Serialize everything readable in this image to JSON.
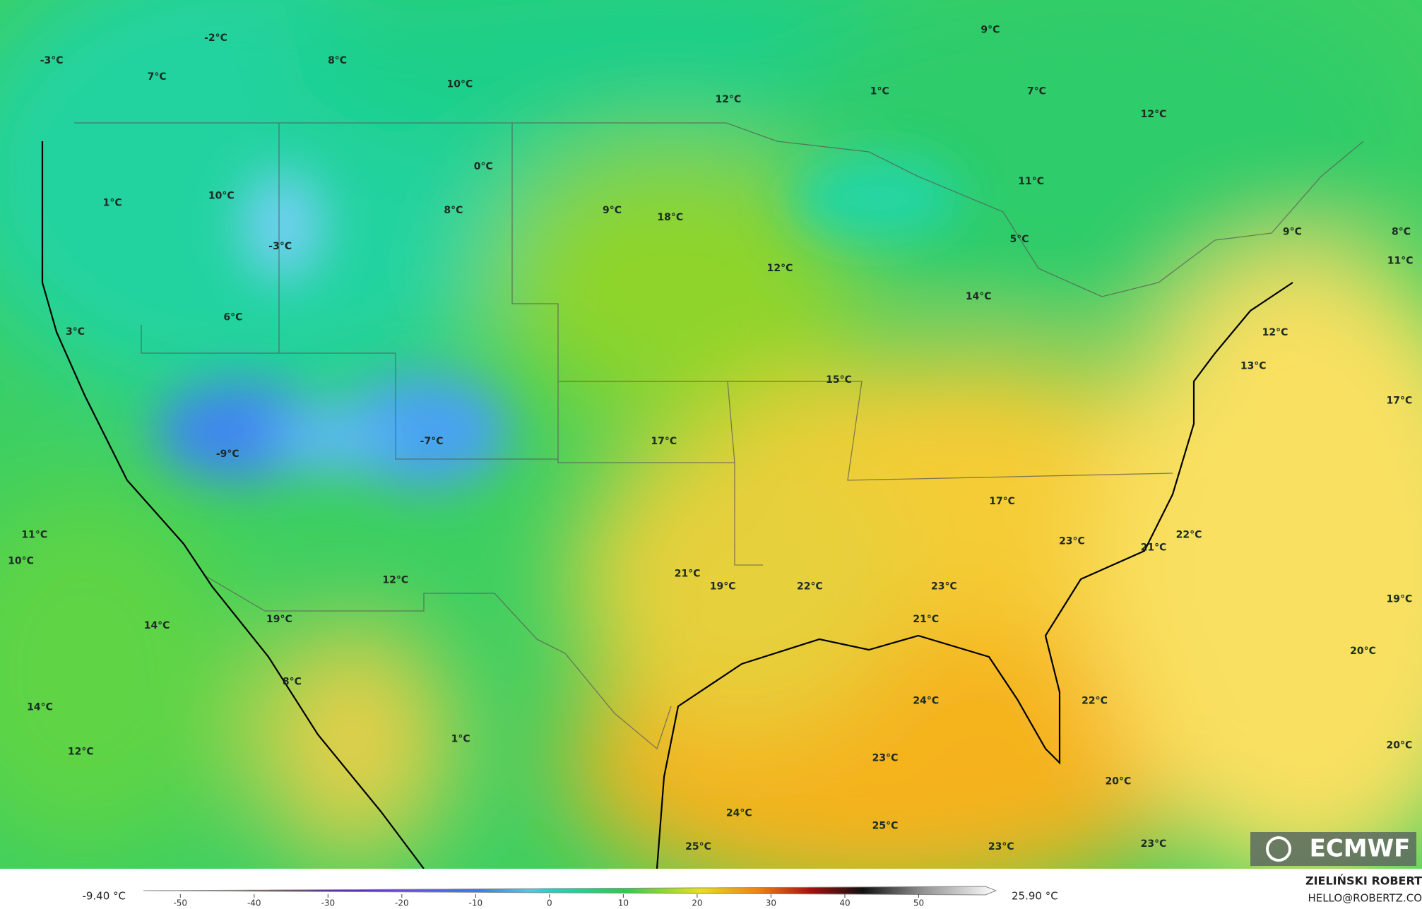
{
  "map": {
    "labels": [
      "-3°C",
      "-2°C",
      "7°C",
      "8°C",
      "10°C",
      "12°C",
      "1°C",
      "7°C",
      "9°C",
      "12°C",
      "0°C",
      "10°C",
      "1°C",
      "8°C",
      "9°C",
      "18°C",
      "11°C",
      "-3°C",
      "12°C",
      "5°C",
      "9°C",
      "8°C",
      "11°C",
      "14°C",
      "6°C",
      "3°C",
      "12°C",
      "13°C",
      "15°C",
      "17°C",
      "-9°C",
      "-7°C",
      "17°C",
      "17°C",
      "22°C",
      "23°C",
      "21°C",
      "11°C",
      "10°C",
      "21°C",
      "19°C",
      "22°C",
      "23°C",
      "12°C",
      "19°C",
      "19°C",
      "21°C",
      "14°C",
      "20°C",
      "8°C",
      "24°C",
      "22°C",
      "14°C",
      "1°C",
      "12°C",
      "20°C",
      "23°C",
      "20°C",
      "24°C",
      "25°C",
      "25°C",
      "23°C",
      "23°C"
    ],
    "logo": "ECMWF"
  },
  "colorbar": {
    "min_label": "-9.40 °C",
    "max_label": "25.90 °C",
    "range": [
      -55,
      60
    ],
    "ticks": [
      -50,
      -40,
      -30,
      -20,
      -10,
      0,
      10,
      20,
      30,
      40,
      50
    ]
  },
  "credit": {
    "name": "ZIELIŃSKI ROBERT",
    "site": "HELLO@ROBERTZ.CO"
  }
}
